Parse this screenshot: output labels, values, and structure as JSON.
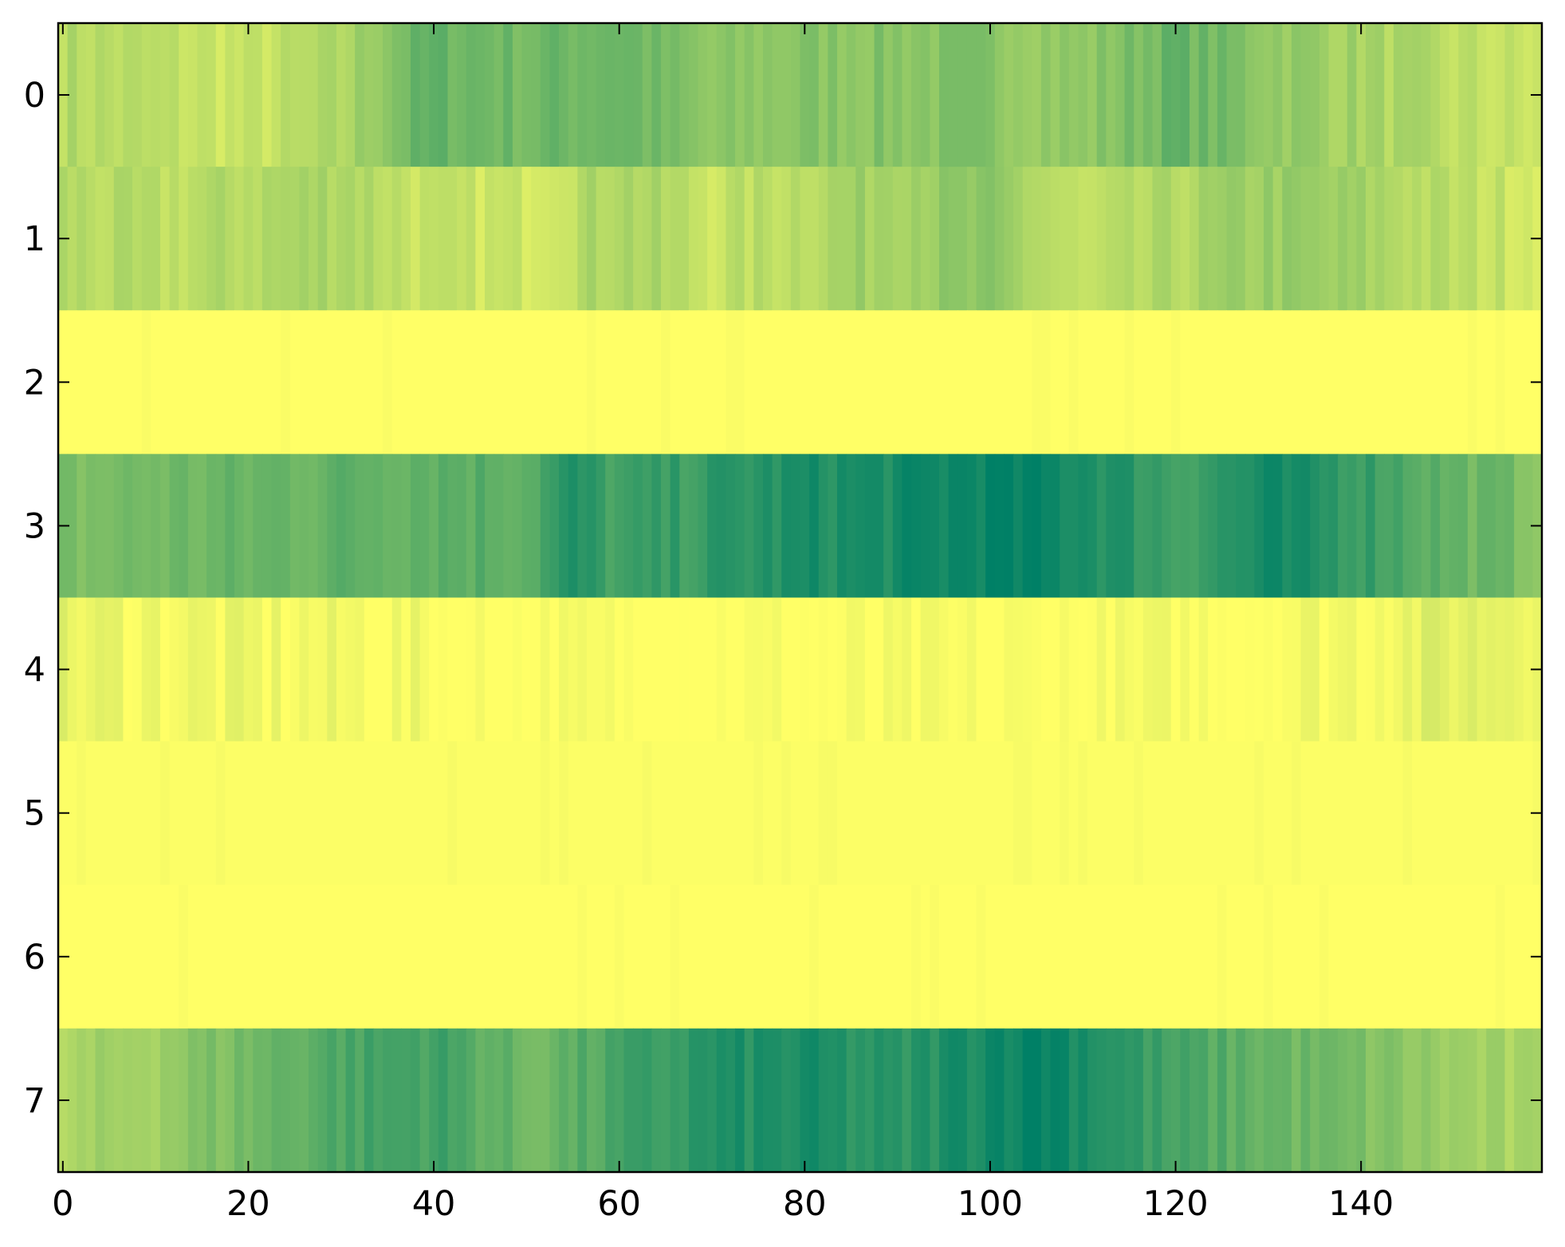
{
  "chart_data": {
    "type": "heatmap",
    "title": "",
    "xlabel": "",
    "ylabel": "",
    "colormap": "summer_r",
    "colors": {
      "low": "#ffff66",
      "high": "#008066"
    },
    "vlim": [
      0,
      1
    ],
    "n_cols": 160,
    "rows": [
      0,
      1,
      2,
      3,
      4,
      5,
      6,
      7
    ],
    "xlim": [
      -0.5,
      159.5
    ],
    "ylim": [
      7.5,
      -0.5
    ],
    "x_ticks": [
      0,
      20,
      40,
      60,
      80,
      100,
      120,
      140
    ],
    "y_ticks": [
      0,
      1,
      2,
      3,
      4,
      5,
      6,
      7
    ],
    "x_tick_labels": [
      "0",
      "20",
      "40",
      "60",
      "80",
      "100",
      "120",
      "140"
    ],
    "y_tick_labels": [
      "0",
      "1",
      "2",
      "3",
      "4",
      "5",
      "6",
      "7"
    ],
    "grid": false,
    "row_profiles": [
      {
        "row": 0,
        "columns": [
          0,
          10,
          20,
          30,
          37,
          40,
          50,
          60,
          70,
          80,
          90,
          100,
          110,
          120,
          130,
          140,
          150,
          159
        ],
        "values": [
          0.3,
          0.25,
          0.2,
          0.3,
          0.55,
          0.6,
          0.55,
          0.6,
          0.42,
          0.47,
          0.47,
          0.47,
          0.42,
          0.6,
          0.45,
          0.35,
          0.25,
          0.2
        ]
      },
      {
        "row": 1,
        "columns": [
          0,
          10,
          20,
          30,
          40,
          50,
          60,
          70,
          80,
          90,
          100,
          110,
          120,
          130,
          140,
          150,
          159
        ],
        "values": [
          0.3,
          0.25,
          0.3,
          0.35,
          0.2,
          0.2,
          0.35,
          0.22,
          0.3,
          0.4,
          0.42,
          0.2,
          0.3,
          0.4,
          0.35,
          0.25,
          0.2
        ]
      },
      {
        "row": 2,
        "columns": [
          0,
          159
        ],
        "values": [
          0.0,
          0.0
        ]
      },
      {
        "row": 3,
        "columns": [
          0,
          10,
          20,
          30,
          40,
          50,
          55,
          60,
          70,
          80,
          90,
          100,
          110,
          120,
          130,
          140,
          150,
          159
        ],
        "values": [
          0.5,
          0.55,
          0.58,
          0.62,
          0.65,
          0.65,
          0.85,
          0.72,
          0.8,
          0.88,
          0.9,
          0.98,
          0.92,
          0.75,
          0.9,
          0.8,
          0.6,
          0.5
        ]
      },
      {
        "row": 4,
        "columns": [
          0,
          10,
          20,
          30,
          40,
          42,
          110,
          120,
          130,
          140,
          150,
          159
        ],
        "values": [
          0.08,
          0.06,
          0.05,
          0.04,
          0.03,
          0.0,
          0.0,
          0.02,
          0.03,
          0.06,
          0.12,
          0.12
        ]
      },
      {
        "row": 5,
        "columns": [
          0,
          159
        ],
        "values": [
          0.01,
          0.01
        ]
      },
      {
        "row": 6,
        "columns": [
          0,
          159
        ],
        "values": [
          0.0,
          0.0
        ]
      },
      {
        "row": 7,
        "columns": [
          0,
          10,
          20,
          30,
          40,
          50,
          60,
          70,
          80,
          90,
          100,
          105,
          110,
          120,
          130,
          140,
          150,
          159
        ],
        "values": [
          0.3,
          0.4,
          0.55,
          0.7,
          0.75,
          0.55,
          0.7,
          0.85,
          0.88,
          0.8,
          0.95,
          1.0,
          0.92,
          0.7,
          0.6,
          0.5,
          0.38,
          0.3
        ]
      }
    ]
  }
}
